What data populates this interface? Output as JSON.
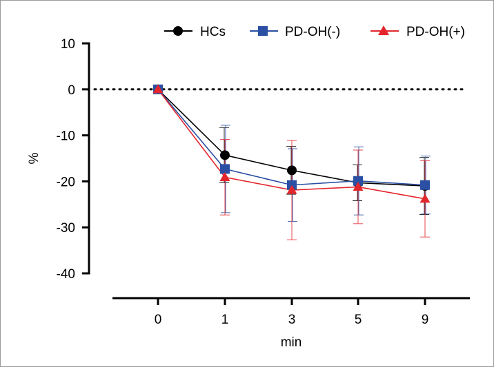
{
  "chart_data": {
    "type": "line",
    "title": "",
    "xlabel": "min",
    "ylabel": "%",
    "categories": [
      "0",
      "1",
      "3",
      "5",
      "9"
    ],
    "ylim": [
      -40,
      10
    ],
    "yticks": [
      10,
      0,
      -10,
      -20,
      -30,
      -40
    ],
    "reference_line": {
      "y": 0,
      "style": "dotted"
    },
    "legend_position": "top-right",
    "series": [
      {
        "name": "HCs",
        "color": "#000000",
        "marker": "circle",
        "values": [
          0,
          -14.3,
          -17.6,
          -20.3,
          -21.0
        ],
        "err": [
          0,
          6.0,
          5.2,
          3.9,
          6.2
        ]
      },
      {
        "name": "PD-OH(-)",
        "color": "#2a4fa3",
        "marker": "square",
        "values": [
          0,
          -17.3,
          -20.8,
          -19.9,
          -20.8
        ],
        "err": [
          0,
          9.5,
          7.9,
          7.4,
          6.3
        ]
      },
      {
        "name": "PD-OH(+)",
        "color": "#e3262d",
        "marker": "triangle",
        "values": [
          0,
          -19.1,
          -21.9,
          -21.2,
          -23.8
        ],
        "err": [
          0,
          8.2,
          10.8,
          8.0,
          8.3
        ]
      }
    ]
  }
}
